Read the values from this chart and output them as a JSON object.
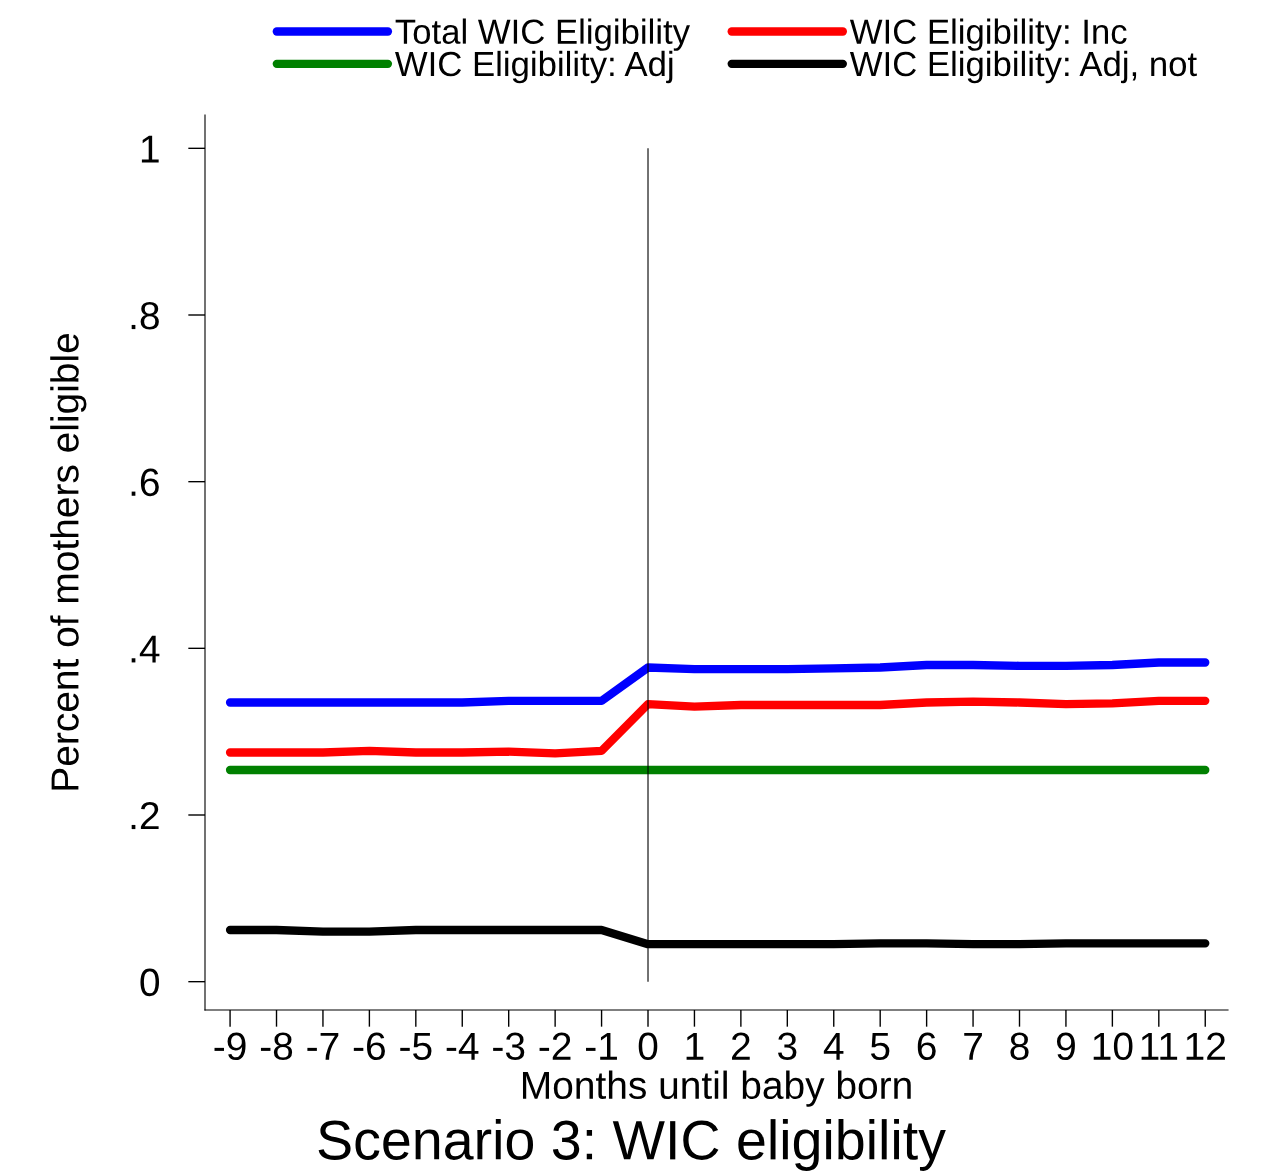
{
  "chart_data": {
    "type": "line",
    "title": "Scenario 3: WIC eligibility",
    "xlabel": "Months until baby born",
    "ylabel": "Percent of mothers eligible",
    "x": [
      -9,
      -8,
      -7,
      -6,
      -5,
      -4,
      -3,
      -2,
      -1,
      0,
      1,
      2,
      3,
      4,
      5,
      6,
      7,
      8,
      9,
      10,
      11,
      12
    ],
    "series": [
      {
        "name": "Total WIC Eligibility",
        "color": "#0000ff",
        "values": [
          0.335,
          0.335,
          0.335,
          0.335,
          0.335,
          0.335,
          0.337,
          0.337,
          0.337,
          0.377,
          0.375,
          0.375,
          0.375,
          0.376,
          0.377,
          0.38,
          0.38,
          0.379,
          0.379,
          0.38,
          0.383,
          0.383
        ]
      },
      {
        "name": "WIC Eligibility: Inc",
        "color": "#ff0000",
        "values": [
          0.275,
          0.275,
          0.275,
          0.277,
          0.275,
          0.275,
          0.276,
          0.274,
          0.277,
          0.333,
          0.33,
          0.332,
          0.332,
          0.332,
          0.332,
          0.335,
          0.336,
          0.335,
          0.333,
          0.334,
          0.337,
          0.337
        ]
      },
      {
        "name": "WIC Eligibility: Adj",
        "color": "#008000",
        "values": [
          0.254,
          0.254,
          0.254,
          0.254,
          0.254,
          0.254,
          0.254,
          0.254,
          0.254,
          0.254,
          0.254,
          0.254,
          0.254,
          0.254,
          0.254,
          0.254,
          0.254,
          0.254,
          0.254,
          0.254,
          0.254,
          0.254
        ]
      },
      {
        "name": "WIC Eligibility: Adj, not",
        "color": "#000000",
        "values": [
          0.062,
          0.062,
          0.06,
          0.06,
          0.062,
          0.062,
          0.062,
          0.062,
          0.062,
          0.045,
          0.045,
          0.045,
          0.045,
          0.045,
          0.046,
          0.046,
          0.045,
          0.045,
          0.046,
          0.046,
          0.046,
          0.046
        ]
      }
    ],
    "xlim": [
      -9.54,
      12.49
    ],
    "ylim": [
      -0.034,
      1.04
    ],
    "xticks": [
      -9,
      -8,
      -7,
      -6,
      -5,
      -4,
      -3,
      -2,
      -1,
      0,
      1,
      2,
      3,
      4,
      5,
      6,
      7,
      8,
      9,
      10,
      11,
      12
    ],
    "yticks": [
      0,
      {
        "value": 0.2,
        "label": ".2"
      },
      {
        "value": 0.4,
        "label": ".4"
      },
      {
        "value": 0.6,
        "label": ".6"
      },
      {
        "value": 0.8,
        "label": ".8"
      },
      1
    ],
    "ref_lines": [
      {
        "axis": "x",
        "value": 0,
        "color": "#000000"
      }
    ],
    "legend": "top",
    "grid": false,
    "line_style": "solid"
  }
}
